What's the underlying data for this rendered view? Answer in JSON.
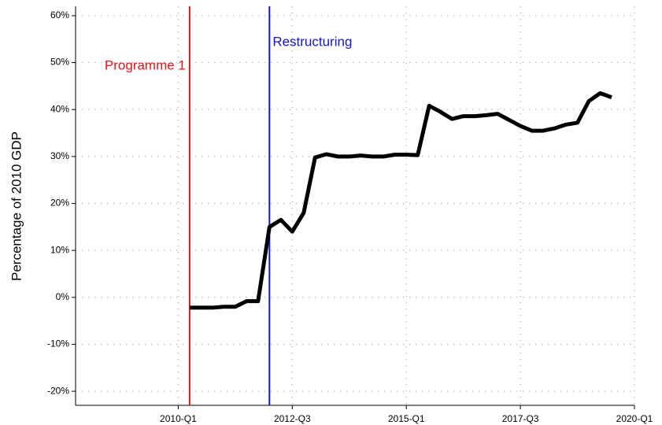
{
  "chart_data": {
    "type": "line",
    "y_label": "Percentage of 2010 GDP",
    "x": [
      "2010-Q2",
      "2010-Q3",
      "2010-Q4",
      "2011-Q1",
      "2011-Q2",
      "2011-Q3",
      "2011-Q4",
      "2012-Q1",
      "2012-Q2",
      "2012-Q3",
      "2012-Q4",
      "2013-Q1",
      "2013-Q2",
      "2013-Q3",
      "2013-Q4",
      "2014-Q1",
      "2014-Q2",
      "2014-Q3",
      "2014-Q4",
      "2015-Q1",
      "2015-Q2",
      "2015-Q3",
      "2015-Q4",
      "2016-Q1",
      "2016-Q2",
      "2016-Q3",
      "2016-Q4",
      "2017-Q1",
      "2017-Q2",
      "2017-Q3",
      "2017-Q4",
      "2018-Q1",
      "2018-Q2",
      "2018-Q3",
      "2018-Q4",
      "2019-Q1",
      "2019-Q2",
      "2019-Q3"
    ],
    "series": [
      {
        "color": "#000000",
        "values": [
          -2.2,
          -2.2,
          -2.2,
          -2.0,
          -2.0,
          -0.8,
          -0.8,
          15,
          16.5,
          14,
          18,
          29.8,
          30.5,
          30,
          30,
          30.2,
          30,
          30,
          30.4,
          30.4,
          30.3,
          40.8,
          39.5,
          38,
          38.6,
          38.6,
          38.8,
          39.1,
          37.8,
          36.5,
          35.5,
          35.5,
          36,
          36.8,
          37.2,
          41.8,
          43.5,
          42.6
        ]
      }
    ],
    "annotations": [
      {
        "text": "Programme 1",
        "x": "2010-Q2",
        "color": "#e8141c"
      },
      {
        "text": "Restructuring",
        "x": "2012-Q1",
        "color": "#1414d2"
      }
    ],
    "xlim": [
      "2007-Q4",
      "2020-Q1"
    ],
    "xticks": [
      "2010-Q1",
      "2012-Q3",
      "2015-Q1",
      "2017-Q3",
      "2020-Q1"
    ],
    "ylim": [
      -23,
      62
    ],
    "yticks": [
      {
        "value": -20,
        "label": "-20%"
      },
      {
        "value": -10,
        "label": "-10%"
      },
      {
        "value": 0,
        "label": "0%"
      },
      {
        "value": 10,
        "label": "10%"
      },
      {
        "value": 20,
        "label": "20%"
      },
      {
        "value": 30,
        "label": "30%"
      },
      {
        "value": 40,
        "label": "40%"
      },
      {
        "value": 50,
        "label": "50%"
      },
      {
        "value": 60,
        "label": "60%"
      }
    ],
    "grid": true
  }
}
